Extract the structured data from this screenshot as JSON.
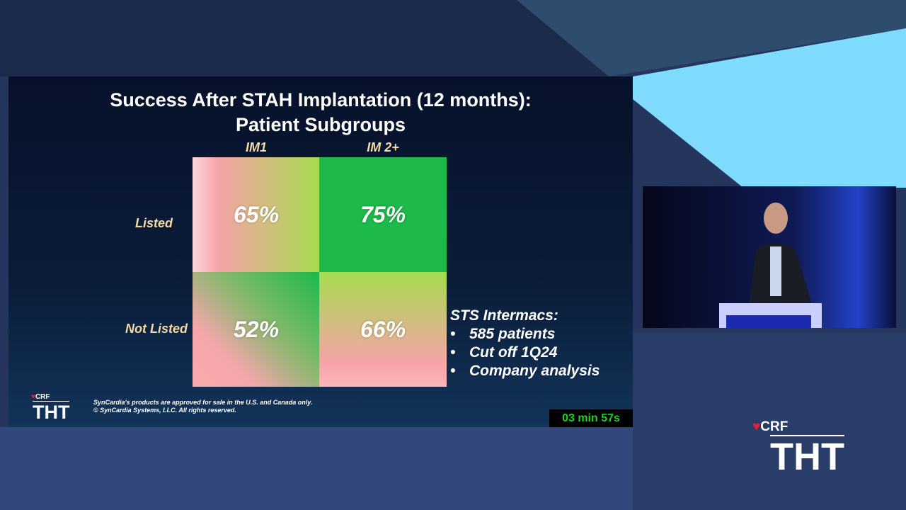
{
  "slide": {
    "title": [
      "Success After STAH Implantation (12 months):",
      "Patient Subgroups"
    ],
    "columns": [
      "IM1",
      "IM 2+"
    ],
    "rows": [
      {
        "label": "Listed",
        "cells": [
          "65%",
          "75%"
        ]
      },
      {
        "label": "Not Listed",
        "cells": [
          "52%",
          "66%"
        ]
      }
    ],
    "notes": {
      "heading": "STS Intermacs:",
      "bullets": [
        "585 patients",
        "Cut off 1Q24",
        "Company analysis"
      ]
    },
    "footer": [
      "SynCardia's products are approved for sale in the U.S. and Canada only.",
      "© SynCardia Systems, LLC. All rights reserved."
    ],
    "logo": {
      "brand": "CRF",
      "mark": "THT"
    }
  },
  "timer": "03 min 57s",
  "logo": {
    "brand": "CRF",
    "mark": "THT"
  }
}
